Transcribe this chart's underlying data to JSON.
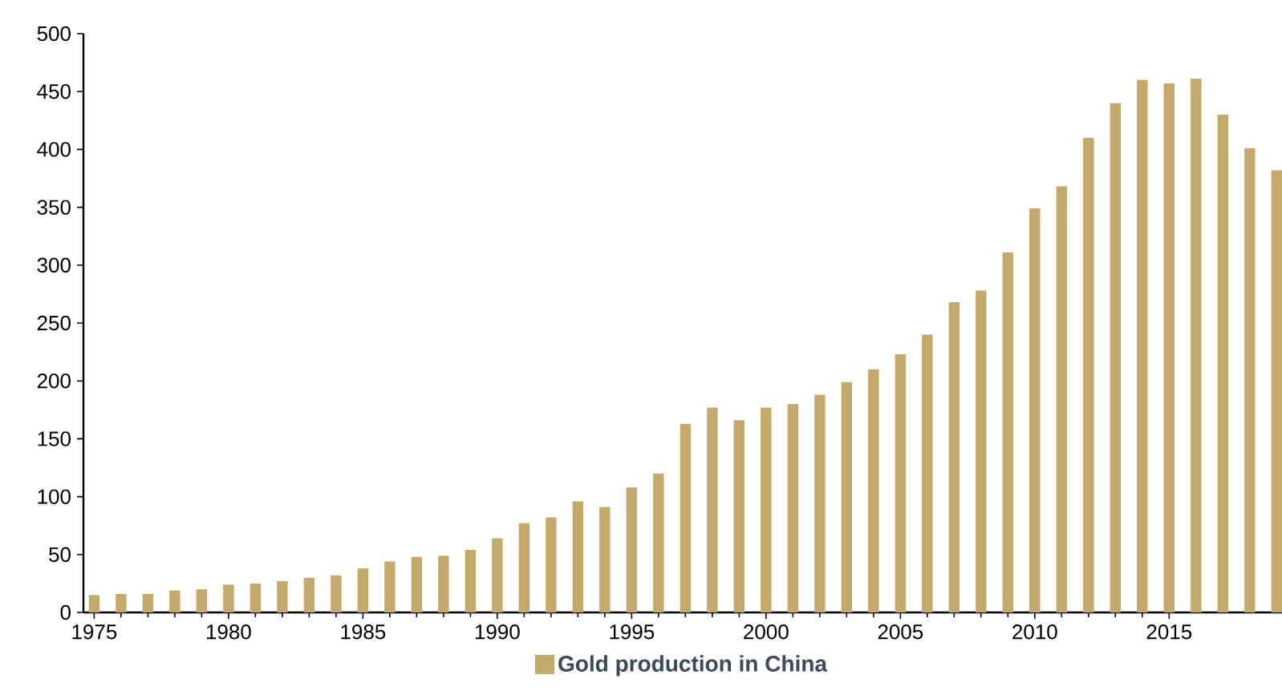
{
  "chart_data": {
    "type": "bar",
    "x": [
      1975,
      1976,
      1977,
      1978,
      1979,
      1980,
      1981,
      1982,
      1983,
      1984,
      1985,
      1986,
      1987,
      1988,
      1989,
      1990,
      1991,
      1992,
      1993,
      1994,
      1995,
      1996,
      1997,
      1998,
      1999,
      2000,
      2001,
      2002,
      2003,
      2004,
      2005,
      2006,
      2007,
      2008,
      2009,
      2010,
      2011,
      2012,
      2013,
      2014,
      2015,
      2016,
      2017,
      2018,
      2019
    ],
    "series": [
      {
        "name": "Gold production in China",
        "color": "#c4a96a",
        "values": [
          15,
          16,
          16,
          19,
          20,
          24,
          25,
          27,
          30,
          32,
          38,
          44,
          48,
          49,
          54,
          64,
          77,
          82,
          96,
          91,
          108,
          120,
          163,
          177,
          166,
          177,
          180,
          188,
          199,
          210,
          223,
          240,
          268,
          278,
          311,
          349,
          368,
          410,
          440,
          460,
          457,
          461,
          430,
          401,
          382
        ]
      }
    ],
    "xlim": [
      1974.6,
      2019.2
    ],
    "xticks": [
      1975,
      1980,
      1985,
      1990,
      1995,
      2000,
      2005,
      2010,
      2015
    ],
    "ylim": [
      0,
      500
    ],
    "yticks": [
      0,
      50,
      100,
      150,
      200,
      250,
      300,
      350,
      400,
      450,
      500
    ],
    "grid": false,
    "legend": "bottom"
  }
}
